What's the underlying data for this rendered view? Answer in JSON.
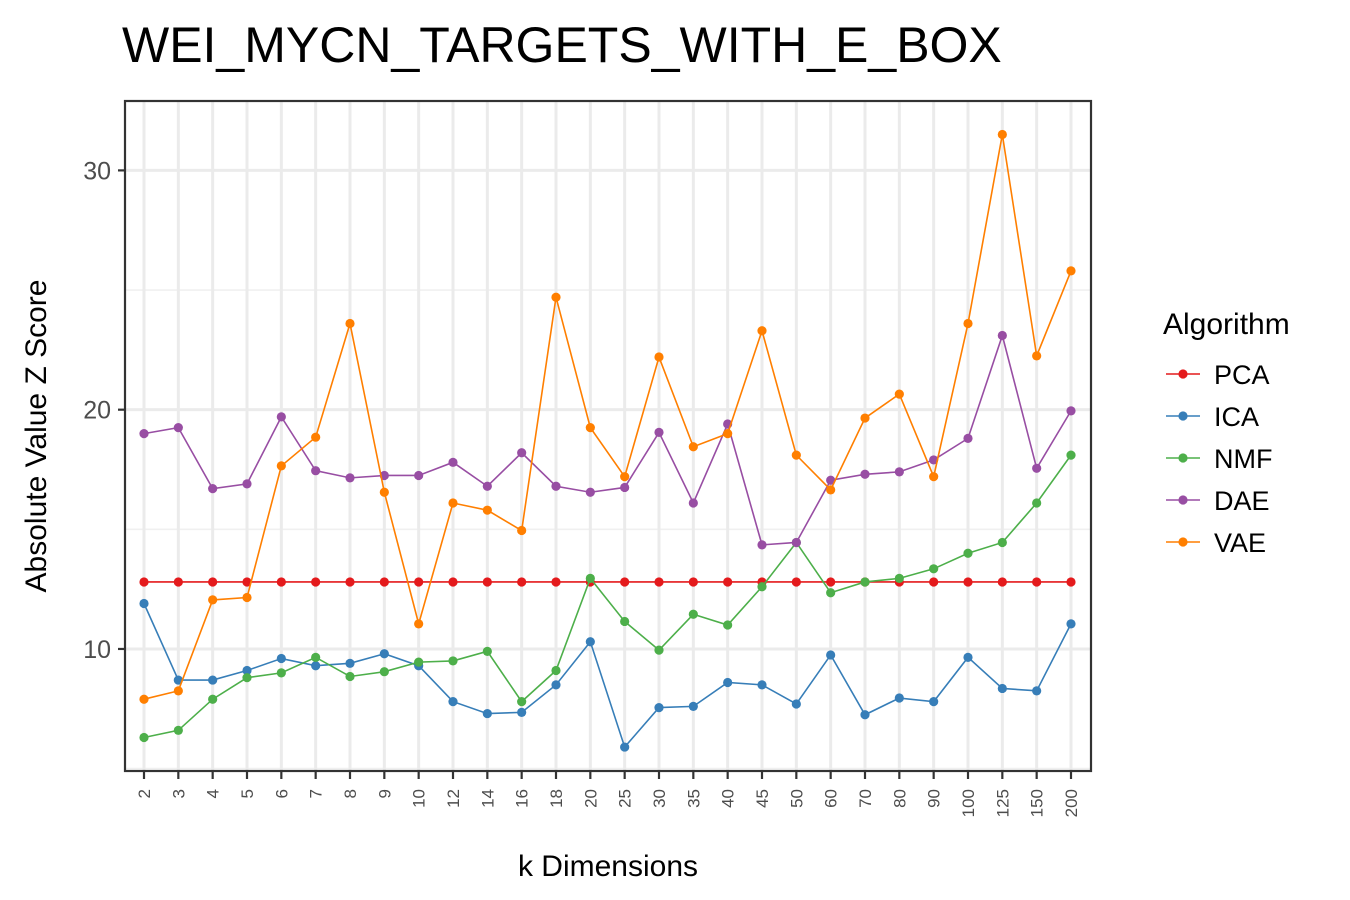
{
  "chart_data": {
    "type": "line",
    "title": "WEI_MYCN_TARGETS_WITH_E_BOX",
    "xlabel": "k Dimensions",
    "ylabel": "Absolute Value Z Score",
    "categories": [
      "2",
      "3",
      "4",
      "5",
      "6",
      "7",
      "8",
      "9",
      "10",
      "12",
      "14",
      "16",
      "18",
      "20",
      "25",
      "30",
      "35",
      "40",
      "45",
      "50",
      "60",
      "70",
      "80",
      "90",
      "100",
      "125",
      "150",
      "200"
    ],
    "ylim": [
      4.9,
      32.9
    ],
    "yticks": [
      10,
      20,
      30
    ],
    "grid": true,
    "legend": {
      "title": "Algorithm",
      "position": "right"
    },
    "series": [
      {
        "name": "PCA",
        "color": "#e41a1c",
        "values": [
          12.8,
          12.8,
          12.8,
          12.8,
          12.8,
          12.8,
          12.8,
          12.8,
          12.8,
          12.8,
          12.8,
          12.8,
          12.8,
          12.8,
          12.8,
          12.8,
          12.8,
          12.8,
          12.8,
          12.8,
          12.8,
          12.8,
          12.8,
          12.8,
          12.8,
          12.8,
          12.8,
          12.8
        ]
      },
      {
        "name": "ICA",
        "color": "#377eb8",
        "values": [
          11.9,
          8.7,
          8.7,
          9.1,
          9.6,
          9.3,
          9.4,
          9.8,
          9.3,
          7.8,
          7.3,
          7.35,
          8.5,
          10.3,
          5.9,
          7.55,
          7.6,
          8.6,
          8.5,
          7.7,
          9.75,
          7.25,
          7.95,
          7.8,
          9.65,
          8.35,
          8.25,
          11.05
        ]
      },
      {
        "name": "NMF",
        "color": "#4daf4a",
        "values": [
          6.3,
          6.6,
          7.9,
          8.8,
          9.0,
          9.65,
          8.85,
          9.05,
          9.45,
          9.5,
          9.9,
          7.8,
          9.1,
          12.95,
          11.15,
          9.95,
          11.45,
          11.0,
          12.6,
          14.45,
          12.35,
          12.8,
          12.95,
          13.35,
          14.0,
          14.45,
          16.1,
          18.1
        ]
      },
      {
        "name": "DAE",
        "color": "#984ea3",
        "values": [
          19.0,
          19.25,
          16.7,
          16.9,
          19.7,
          17.45,
          17.15,
          17.25,
          17.25,
          17.8,
          16.8,
          18.2,
          16.8,
          16.55,
          16.75,
          19.05,
          16.1,
          19.4,
          14.35,
          14.45,
          17.05,
          17.3,
          17.4,
          17.9,
          18.8,
          23.1,
          17.55,
          19.95
        ]
      },
      {
        "name": "VAE",
        "color": "#ff7f00",
        "values": [
          7.9,
          8.25,
          12.05,
          12.15,
          17.65,
          18.85,
          23.6,
          16.55,
          11.05,
          16.1,
          15.8,
          14.95,
          24.7,
          19.25,
          17.2,
          22.2,
          18.45,
          19.0,
          23.3,
          18.1,
          16.65,
          19.65,
          20.65,
          17.2,
          23.6,
          31.5,
          22.25,
          25.8
        ]
      }
    ]
  }
}
